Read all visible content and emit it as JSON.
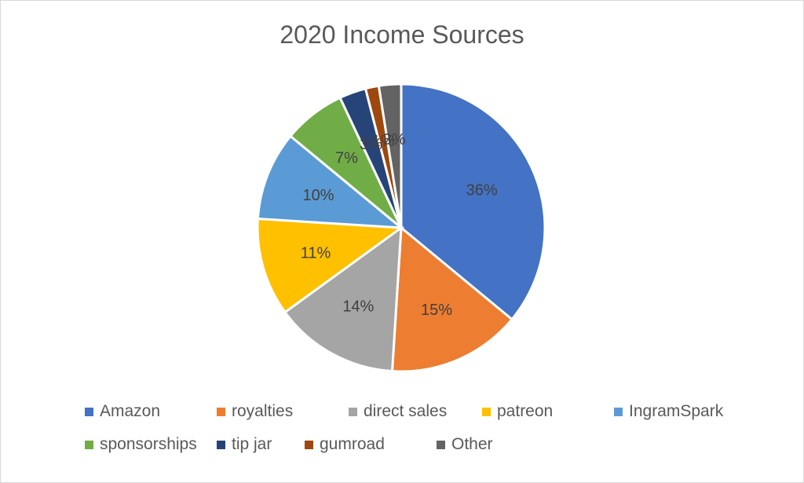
{
  "chart_data": {
    "type": "pie",
    "title": "2020 Income Sources",
    "legend_position": "bottom",
    "slices": [
      {
        "label": "Amazon",
        "value": 36,
        "display": "36%",
        "color": "#4472C4"
      },
      {
        "label": "royalties",
        "value": 15,
        "display": "15%",
        "color": "#ED7D31"
      },
      {
        "label": "direct sales",
        "value": 14,
        "display": "14%",
        "color": "#A5A5A5"
      },
      {
        "label": "patreon",
        "value": 11,
        "display": "11%",
        "color": "#FFC000"
      },
      {
        "label": "IngramSpark",
        "value": 10,
        "display": "10%",
        "color": "#5B9BD5"
      },
      {
        "label": "sponsorships",
        "value": 7,
        "display": "7%",
        "color": "#70AD47"
      },
      {
        "label": "tip jar",
        "value": 3,
        "display": "3%",
        "color": "#264478"
      },
      {
        "label": "gumroad",
        "value": 1.5,
        "display": "1%",
        "color": "#9E480E"
      },
      {
        "label": "Other",
        "value": 2.5,
        "display": "3%",
        "color": "#636363"
      }
    ]
  }
}
